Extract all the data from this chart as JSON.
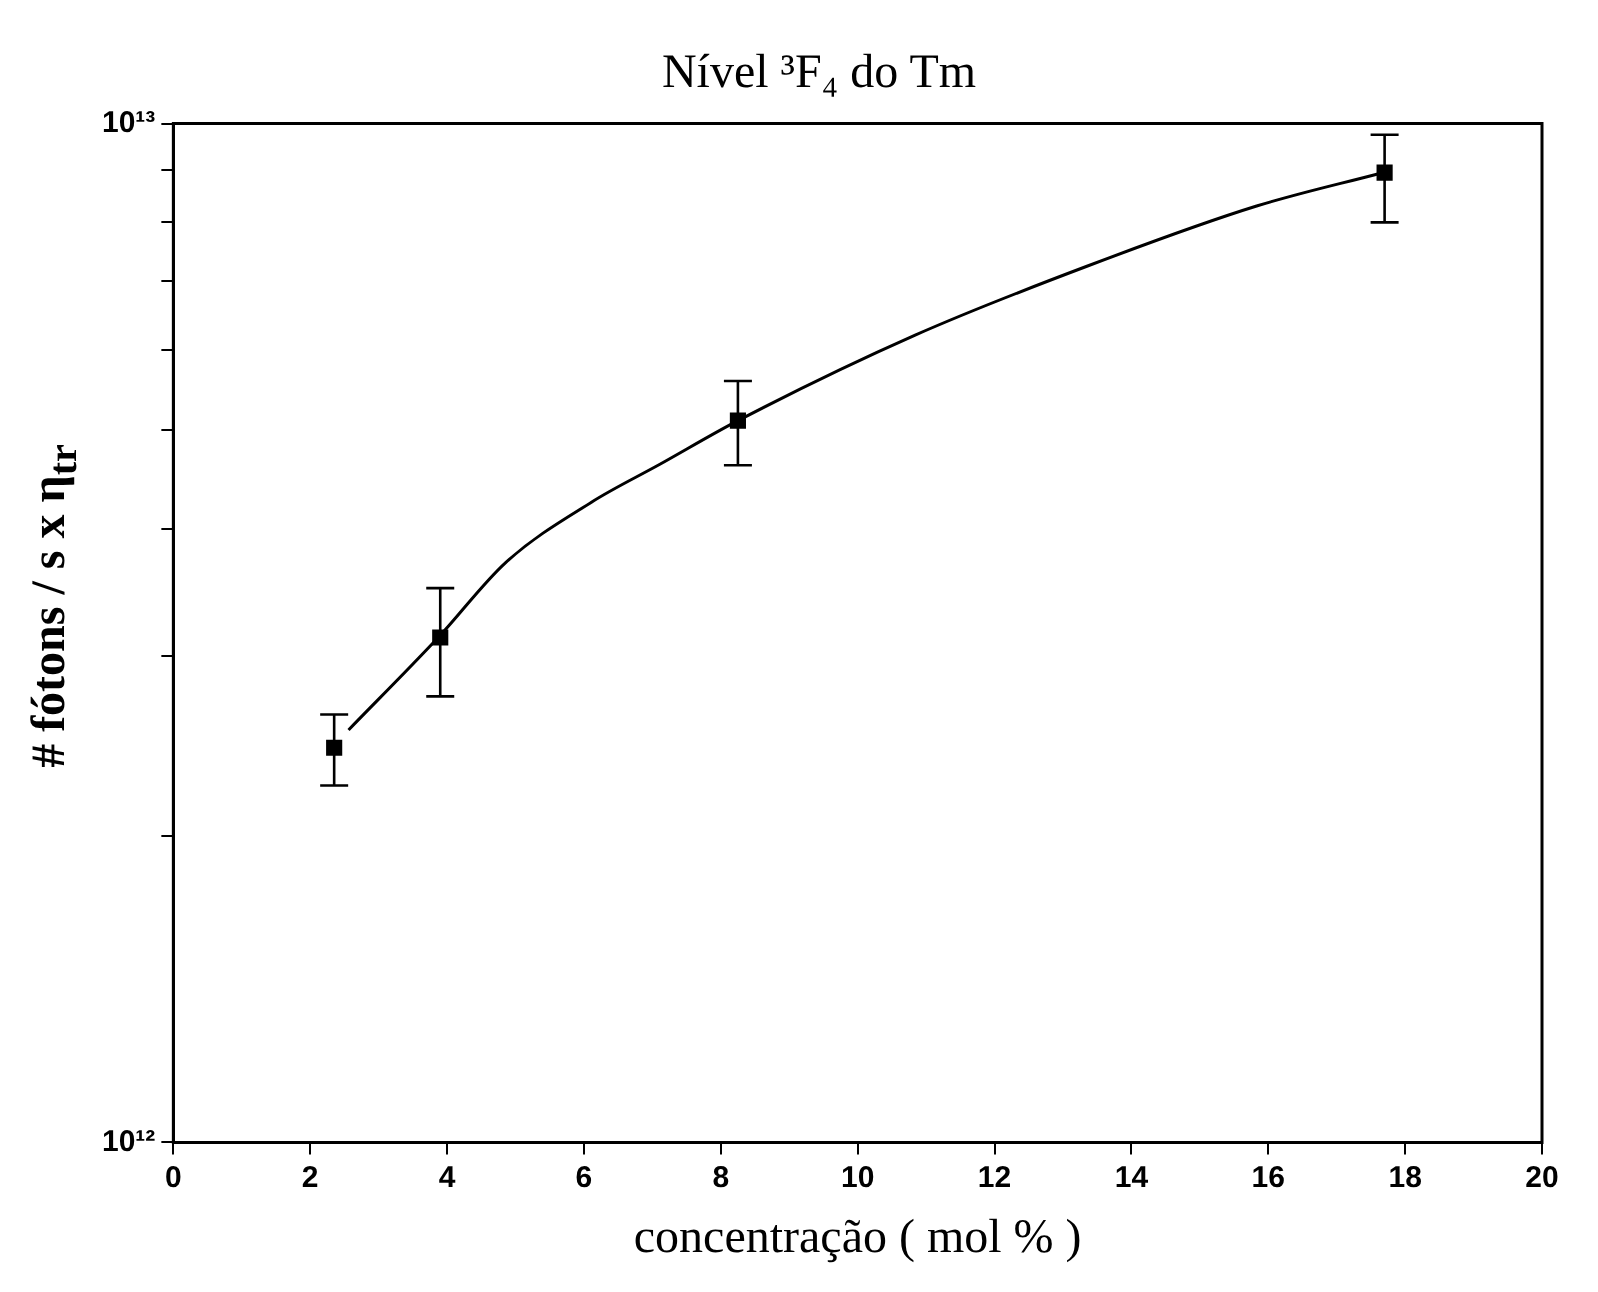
{
  "chart_data": {
    "type": "scatter",
    "title": "Nível ³F₄ do Tm",
    "xlabel": "concentração ( mol % )",
    "ylabel": "# fótons / s  x  η$_{tr}$",
    "log": "y",
    "grid": false,
    "marker": "square",
    "xlim": [
      0,
      20
    ],
    "xticks": [
      0,
      2,
      4,
      6,
      8,
      10,
      12,
      14,
      16,
      18,
      20
    ],
    "ylim": [
      1000000000000.0,
      10000000000000.0
    ],
    "yticks": [
      {
        "value": 1000000000000.0,
        "label": "10¹²"
      },
      {
        "value": 2000000000000.0,
        "label": null
      },
      {
        "value": 3000000000000.0,
        "label": null
      },
      {
        "value": 4000000000000.0,
        "label": null
      },
      {
        "value": 5000000000000.0,
        "label": null
      },
      {
        "value": 6000000000000.0,
        "label": null
      },
      {
        "value": 7000000000000.0,
        "label": null
      },
      {
        "value": 8000000000000.0,
        "label": null
      },
      {
        "value": 9000000000000.0,
        "label": null
      },
      {
        "value": 10000000000000.0,
        "label": "10¹³"
      }
    ],
    "series": [
      {
        "color": "#000000",
        "x": [
          2.35,
          3.9,
          8.25,
          17.7
        ],
        "values": [
          2440000000000.0,
          3130000000000.0,
          5110000000000.0,
          8950000000000.0
        ],
        "errors": [
          [
            2240000000000.0,
            2630000000000.0
          ],
          [
            2740000000000.0,
            3500000000000.0
          ],
          [
            4620000000000.0,
            5590000000000.0
          ],
          [
            8000000000000.0,
            9750000000000.0
          ]
        ]
      },
      {
        "type": "line",
        "color": "#000000",
        "marker": "none",
        "x": [
          2.56,
          3.87,
          4.86,
          6.11,
          7.11,
          8.25,
          10.84,
          13.34,
          15.83,
          17.67
        ],
        "values": [
          2540000000000.0,
          3130000000000.0,
          3710000000000.0,
          4250000000000.0,
          4630000000000.0,
          5110000000000.0,
          6200000000000.0,
          7240000000000.0,
          8300000000000.0,
          8950000000000.0
        ]
      }
    ]
  }
}
